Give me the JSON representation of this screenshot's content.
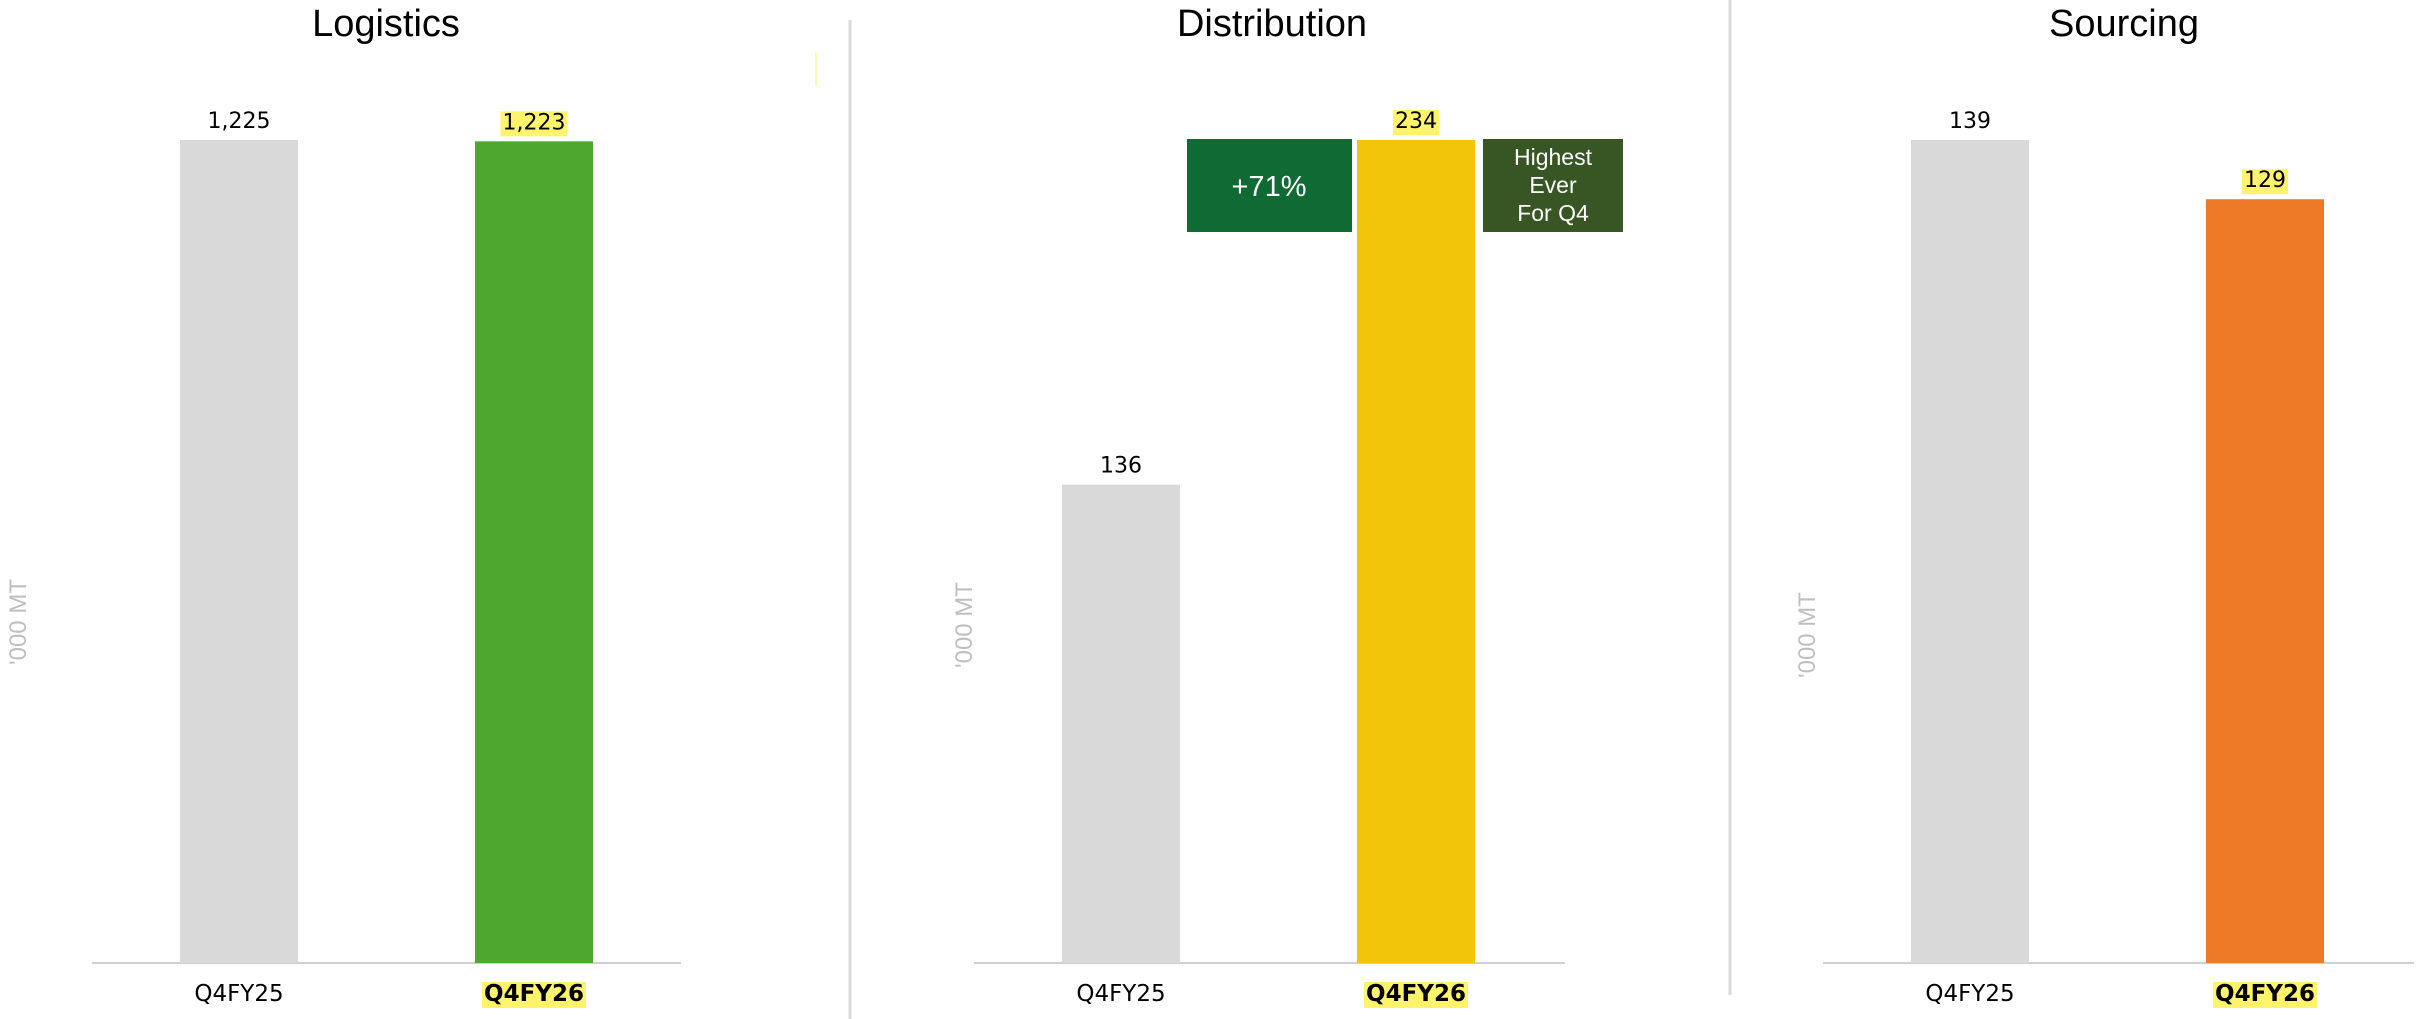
{
  "chart_data": [
    {
      "type": "bar",
      "title": "Logistics",
      "ylabel": "'000 MT",
      "categories": [
        "Q4FY25",
        "Q4FY26"
      ],
      "values": [
        1225,
        1223
      ],
      "value_labels": [
        "1,225",
        "1,223"
      ],
      "bar_colors": [
        "#d9d9d9",
        "#4ea72e"
      ],
      "highlight_category": "Q4FY26",
      "ylim": [
        0,
        1225
      ],
      "grid": false,
      "legend": "none"
    },
    {
      "type": "bar",
      "title": "Distribution",
      "ylabel": "'000 MT",
      "categories": [
        "Q4FY25",
        "Q4FY26"
      ],
      "values": [
        136,
        234
      ],
      "value_labels": [
        "136",
        "234"
      ],
      "bar_colors": [
        "#d9d9d9",
        "#f2c40a"
      ],
      "highlight_category": "Q4FY26",
      "ylim": [
        0,
        234
      ],
      "grid": false,
      "legend": "none",
      "annotations": [
        {
          "text": "+71%",
          "color": "#0f6b33"
        },
        {
          "lines": [
            "Highest",
            "Ever",
            "For Q4"
          ],
          "color": "#375623"
        }
      ]
    },
    {
      "type": "bar",
      "title": "Sourcing",
      "ylabel": "'000 MT",
      "categories": [
        "Q4FY25",
        "Q4FY26"
      ],
      "values": [
        139,
        129
      ],
      "value_labels": [
        "139",
        "129"
      ],
      "bar_colors": [
        "#d9d9d9",
        "#ee7a28"
      ],
      "highlight_category": "Q4FY26",
      "ylim": [
        0,
        139
      ],
      "grid": false,
      "legend": "none"
    }
  ],
  "colors": {
    "highlight": "#fff36b",
    "axis": "#d0d0d0",
    "divider": "#d9d9d9",
    "ylabel": "#bfbfbf"
  }
}
